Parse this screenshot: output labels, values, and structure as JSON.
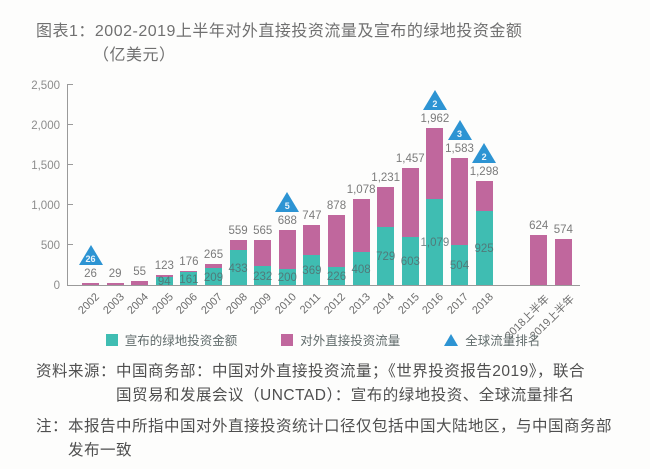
{
  "title": {
    "line1": "图表1：2002-2019上半年对外直接投资流量及宣布的绿地投资金额",
    "line2": "（亿美元）"
  },
  "colors": {
    "greenfield": "#3fbdb2",
    "odi_flow": "#c0679d",
    "rank_triangle": "#2d94d3",
    "axis": "#9a9a9a",
    "bar_label": "#7b7b7b"
  },
  "chart_data": {
    "type": "bar",
    "title": "图表1：2002-2019上半年对外直接投资流量及宣布的绿地投资金额（亿美元）",
    "ylabel": "亿美元",
    "ylim": [
      0,
      2500
    ],
    "yticks": [
      "0",
      "500",
      "1,000",
      "1,500",
      "2,000",
      "2,500"
    ],
    "grid": false,
    "legend_position": "bottom",
    "legend": [
      {
        "label": "宣布的绿地投资金额",
        "marker": "square",
        "color": "#3fbdb2"
      },
      {
        "label": "对外直接投资流量",
        "marker": "square",
        "color": "#c0679d"
      },
      {
        "label": "全球流量排名",
        "marker": "triangle",
        "color": "#2d94d3"
      }
    ],
    "bars": [
      {
        "year": "2002",
        "odi_flow": 26,
        "odi_label": "26",
        "greenfield": null,
        "greenfield_label": null,
        "rank": 26
      },
      {
        "year": "2003",
        "odi_flow": 29,
        "odi_label": "29",
        "greenfield": null,
        "greenfield_label": null
      },
      {
        "year": "2004",
        "odi_flow": 55,
        "odi_label": "55",
        "greenfield": null,
        "greenfield_label": null
      },
      {
        "year": "2005",
        "odi_flow": 123,
        "odi_label": "123",
        "greenfield": 94,
        "greenfield_label": "94"
      },
      {
        "year": "2006",
        "odi_flow": 176,
        "odi_label": "176",
        "greenfield": 161,
        "greenfield_label": "161"
      },
      {
        "year": "2007",
        "odi_flow": 265,
        "odi_label": "265",
        "greenfield": 209,
        "greenfield_label": "209"
      },
      {
        "year": "2008",
        "odi_flow": 559,
        "odi_label": "559",
        "greenfield": 433,
        "greenfield_label": "433"
      },
      {
        "year": "2009",
        "odi_flow": 565,
        "odi_label": "565",
        "greenfield": 232,
        "greenfield_label": "232"
      },
      {
        "year": "2010",
        "odi_flow": 688,
        "odi_label": "688",
        "greenfield": 200,
        "greenfield_label": "200",
        "rank": 5
      },
      {
        "year": "2011",
        "odi_flow": 747,
        "odi_label": "747",
        "greenfield": 369,
        "greenfield_label": "369"
      },
      {
        "year": "2012",
        "odi_flow": 878,
        "odi_label": "878",
        "greenfield": 226,
        "greenfield_label": "226"
      },
      {
        "year": "2013",
        "odi_flow": 1078,
        "odi_label": "1,078",
        "greenfield": 408,
        "greenfield_label": "408"
      },
      {
        "year": "2014",
        "odi_flow": 1231,
        "odi_label": "1,231",
        "greenfield": 729,
        "greenfield_label": "729"
      },
      {
        "year": "2015",
        "odi_flow": 1457,
        "odi_label": "1,457",
        "greenfield": 603,
        "greenfield_label": "603"
      },
      {
        "year": "2016",
        "odi_flow": 1962,
        "odi_label": "1,962",
        "greenfield": 1079,
        "greenfield_label": "1,079",
        "rank": 2
      },
      {
        "year": "2017",
        "odi_flow": 1583,
        "odi_label": "1,583",
        "greenfield": 504,
        "greenfield_label": "504",
        "rank": 3
      },
      {
        "year": "2018",
        "odi_flow": 1298,
        "odi_label": "1,298",
        "greenfield": 925,
        "greenfield_label": "925",
        "rank": 2
      },
      {
        "year": "2018上半年",
        "odi_flow": 624,
        "odi_label": "624",
        "greenfield": null,
        "greenfield_label": null,
        "gap_before": true
      },
      {
        "year": "2019上半年",
        "odi_flow": 574,
        "odi_label": "574",
        "greenfield": null,
        "greenfield_label": null
      }
    ]
  },
  "source": {
    "label": "资料来源：",
    "lines": [
      "中国商务部：中国对外直接投资流量；《世界投资报告2019》，联合",
      "国贸易和发展会议（UNCTAD）：宣布的绿地投资、全球流量排名"
    ]
  },
  "note": {
    "label": "注：",
    "lines": [
      "本报告中所指中国对外直接投资统计口径仅包括中国大陆地区，与中国商务部",
      "发布一致"
    ]
  }
}
